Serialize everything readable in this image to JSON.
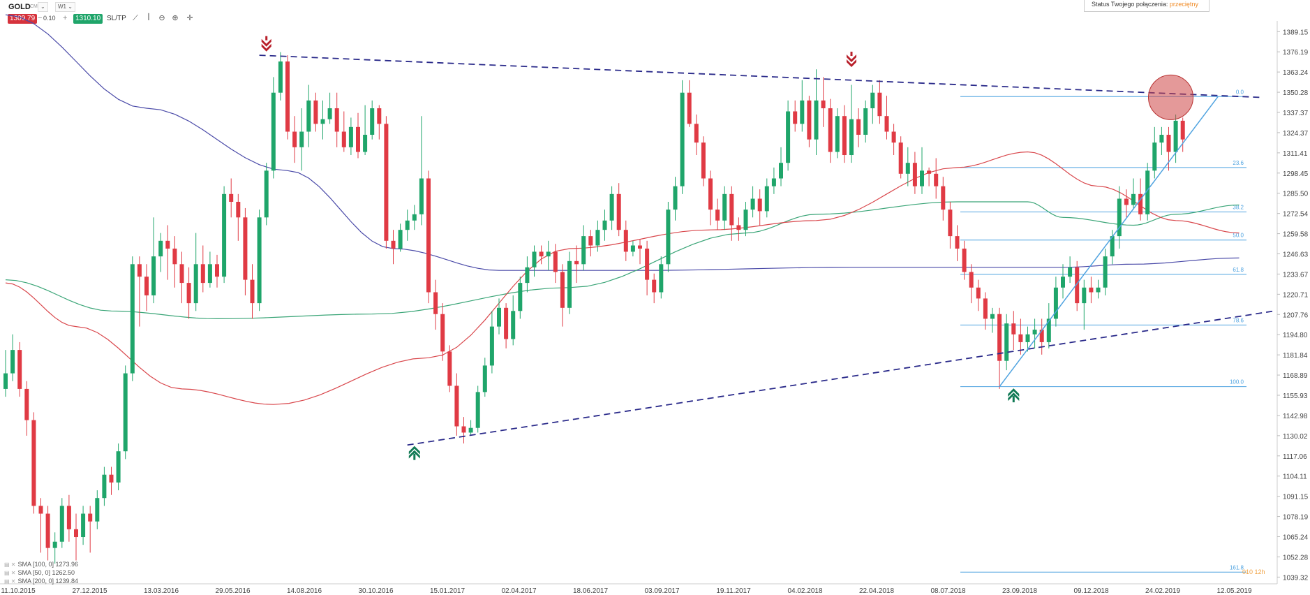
{
  "toolbar": {
    "symbol": "GOLD",
    "market": "CMD",
    "interval": "W1",
    "sell_price": "1309.79",
    "volume": "0.10",
    "buy_price": "1310.10",
    "sltp_label": "SL/TP"
  },
  "status": {
    "label": "Status Twojego połączenia:",
    "value": "przeciętny"
  },
  "legend": [
    {
      "label": "SMA [100, 0] 1273.96"
    },
    {
      "label": "SMA [50, 0] 1262.50"
    },
    {
      "label": "SMA [200, 0] 1239.84"
    }
  ],
  "corner_note": "010 12h",
  "colors": {
    "bull": "#1fa56a",
    "bear": "#e03a44",
    "sma100": "#d9474c",
    "sma50": "#3aa577",
    "sma200": "#4a4aa8",
    "fib": "#4fa3e0",
    "trend": "#2a2a8a"
  },
  "chart_data": {
    "type": "candlestick",
    "title": "",
    "xlabel": "",
    "ylabel": "",
    "ylim": [
      1035.0,
      1396.0
    ],
    "y_ticks": [
      "1389.15",
      "1376.19",
      "1363.24",
      "1350.28",
      "1337.37",
      "1324.37",
      "1311.41",
      "1298.45",
      "1285.50",
      "1272.54",
      "1259.58",
      "1246.63",
      "1233.67",
      "1220.71",
      "1207.76",
      "1194.80",
      "1181.84",
      "1168.89",
      "1155.93",
      "1142.98",
      "1130.02",
      "1117.06",
      "1104.11",
      "1091.15",
      "1078.19",
      "1065.24",
      "1052.28",
      "1039.32"
    ],
    "x_ticks": [
      "11.10.2015",
      "27.12.2015",
      "13.03.2016",
      "29.05.2016",
      "14.08.2016",
      "30.10.2016",
      "15.01.2017",
      "02.04.2017",
      "18.06.2017",
      "03.09.2017",
      "19.11.2017",
      "04.02.2018",
      "22.04.2018",
      "08.07.2018",
      "23.09.2018",
      "09.12.2018",
      "24.02.2019",
      "12.05.2019"
    ],
    "candles": [
      [
        1160,
        1170,
        1155,
        1185
      ],
      [
        1170,
        1185,
        1165,
        1195
      ],
      [
        1185,
        1160,
        1155,
        1190
      ],
      [
        1160,
        1140,
        1130,
        1165
      ],
      [
        1140,
        1085,
        1080,
        1145
      ],
      [
        1085,
        1080,
        1055,
        1090
      ],
      [
        1080,
        1058,
        1050,
        1085
      ],
      [
        1058,
        1062,
        1048,
        1068
      ],
      [
        1062,
        1085,
        1058,
        1090
      ],
      [
        1085,
        1070,
        1062,
        1092
      ],
      [
        1070,
        1065,
        1050,
        1080
      ],
      [
        1065,
        1080,
        1060,
        1085
      ],
      [
        1080,
        1075,
        1055,
        1085
      ],
      [
        1075,
        1090,
        1070,
        1095
      ],
      [
        1090,
        1105,
        1085,
        1110
      ],
      [
        1105,
        1100,
        1092,
        1110
      ],
      [
        1100,
        1120,
        1095,
        1125
      ],
      [
        1120,
        1170,
        1115,
        1175
      ],
      [
        1170,
        1240,
        1165,
        1245
      ],
      [
        1240,
        1232,
        1200,
        1245
      ],
      [
        1232,
        1220,
        1210,
        1240
      ],
      [
        1220,
        1245,
        1215,
        1270
      ],
      [
        1245,
        1255,
        1235,
        1260
      ],
      [
        1255,
        1250,
        1230,
        1265
      ],
      [
        1250,
        1240,
        1225,
        1258
      ],
      [
        1240,
        1228,
        1215,
        1248
      ],
      [
        1228,
        1215,
        1205,
        1238
      ],
      [
        1215,
        1240,
        1210,
        1260
      ],
      [
        1240,
        1228,
        1222,
        1252
      ],
      [
        1228,
        1240,
        1225,
        1248
      ],
      [
        1240,
        1232,
        1225,
        1246
      ],
      [
        1232,
        1285,
        1228,
        1290
      ],
      [
        1285,
        1280,
        1270,
        1295
      ],
      [
        1280,
        1270,
        1255,
        1285
      ],
      [
        1270,
        1230,
        1220,
        1276
      ],
      [
        1230,
        1215,
        1205,
        1240
      ],
      [
        1215,
        1270,
        1210,
        1275
      ],
      [
        1270,
        1300,
        1265,
        1305
      ],
      [
        1300,
        1350,
        1295,
        1360
      ],
      [
        1350,
        1370,
        1345,
        1376
      ],
      [
        1370,
        1325,
        1320,
        1374
      ],
      [
        1325,
        1315,
        1305,
        1335
      ],
      [
        1315,
        1325,
        1300,
        1340
      ],
      [
        1325,
        1345,
        1315,
        1355
      ],
      [
        1345,
        1330,
        1325,
        1350
      ],
      [
        1330,
        1333,
        1320,
        1345
      ],
      [
        1333,
        1340,
        1330,
        1350
      ],
      [
        1340,
        1325,
        1315,
        1350
      ],
      [
        1325,
        1315,
        1312,
        1338
      ],
      [
        1315,
        1328,
        1310,
        1334
      ],
      [
        1328,
        1312,
        1308,
        1337
      ],
      [
        1312,
        1323,
        1310,
        1342
      ],
      [
        1323,
        1340,
        1320,
        1345
      ],
      [
        1340,
        1330,
        1320,
        1342
      ],
      [
        1330,
        1255,
        1250,
        1335
      ],
      [
        1255,
        1250,
        1240,
        1262
      ],
      [
        1250,
        1262,
        1248,
        1266
      ],
      [
        1262,
        1268,
        1255,
        1275
      ],
      [
        1268,
        1272,
        1262,
        1278
      ],
      [
        1272,
        1295,
        1265,
        1335
      ],
      [
        1295,
        1222,
        1215,
        1300
      ],
      [
        1222,
        1208,
        1198,
        1230
      ],
      [
        1208,
        1184,
        1178,
        1215
      ],
      [
        1184,
        1162,
        1158,
        1188
      ],
      [
        1162,
        1136,
        1130,
        1170
      ],
      [
        1136,
        1132,
        1125,
        1142
      ],
      [
        1132,
        1135,
        1130,
        1140
      ],
      [
        1135,
        1158,
        1132,
        1162
      ],
      [
        1158,
        1175,
        1155,
        1180
      ],
      [
        1175,
        1200,
        1170,
        1210
      ],
      [
        1200,
        1212,
        1195,
        1218
      ],
      [
        1212,
        1192,
        1186,
        1215
      ],
      [
        1192,
        1210,
        1188,
        1220
      ],
      [
        1210,
        1228,
        1205,
        1232
      ],
      [
        1228,
        1238,
        1222,
        1245
      ],
      [
        1238,
        1248,
        1232,
        1252
      ],
      [
        1248,
        1245,
        1240,
        1252
      ],
      [
        1245,
        1248,
        1236,
        1255
      ],
      [
        1248,
        1235,
        1228,
        1253
      ],
      [
        1235,
        1212,
        1200,
        1240
      ],
      [
        1212,
        1242,
        1208,
        1248
      ],
      [
        1242,
        1240,
        1228,
        1252
      ],
      [
        1240,
        1258,
        1236,
        1265
      ],
      [
        1258,
        1252,
        1245,
        1262
      ],
      [
        1252,
        1262,
        1248,
        1268
      ],
      [
        1262,
        1268,
        1255,
        1275
      ],
      [
        1268,
        1285,
        1262,
        1290
      ],
      [
        1285,
        1262,
        1258,
        1292
      ],
      [
        1262,
        1248,
        1242,
        1268
      ],
      [
        1248,
        1252,
        1245,
        1255
      ],
      [
        1252,
        1250,
        1240,
        1256
      ],
      [
        1250,
        1230,
        1220,
        1255
      ],
      [
        1230,
        1222,
        1215,
        1234
      ],
      [
        1222,
        1240,
        1218,
        1245
      ],
      [
        1240,
        1275,
        1235,
        1280
      ],
      [
        1275,
        1290,
        1268,
        1296
      ],
      [
        1290,
        1350,
        1285,
        1358
      ],
      [
        1350,
        1330,
        1328,
        1358
      ],
      [
        1330,
        1318,
        1310,
        1336
      ],
      [
        1318,
        1295,
        1290,
        1322
      ],
      [
        1295,
        1275,
        1265,
        1300
      ],
      [
        1275,
        1268,
        1262,
        1282
      ],
      [
        1268,
        1285,
        1262,
        1290
      ],
      [
        1285,
        1265,
        1255,
        1290
      ],
      [
        1265,
        1262,
        1255,
        1270
      ],
      [
        1262,
        1275,
        1258,
        1280
      ],
      [
        1275,
        1282,
        1270,
        1290
      ],
      [
        1282,
        1274,
        1265,
        1288
      ],
      [
        1274,
        1290,
        1270,
        1295
      ],
      [
        1290,
        1295,
        1285,
        1302
      ],
      [
        1295,
        1305,
        1290,
        1315
      ],
      [
        1305,
        1338,
        1300,
        1345
      ],
      [
        1338,
        1330,
        1325,
        1345
      ],
      [
        1330,
        1345,
        1325,
        1358
      ],
      [
        1345,
        1320,
        1315,
        1348
      ],
      [
        1320,
        1345,
        1310,
        1365
      ],
      [
        1345,
        1340,
        1328,
        1360
      ],
      [
        1340,
        1312,
        1305,
        1346
      ],
      [
        1312,
        1335,
        1308,
        1340
      ],
      [
        1335,
        1310,
        1305,
        1342
      ],
      [
        1310,
        1333,
        1305,
        1355
      ],
      [
        1333,
        1323,
        1315,
        1340
      ],
      [
        1323,
        1340,
        1318,
        1345
      ],
      [
        1340,
        1350,
        1330,
        1355
      ],
      [
        1350,
        1335,
        1330,
        1358
      ],
      [
        1335,
        1325,
        1320,
        1348
      ],
      [
        1325,
        1318,
        1310,
        1330
      ],
      [
        1318,
        1298,
        1295,
        1322
      ],
      [
        1298,
        1305,
        1290,
        1315
      ],
      [
        1305,
        1290,
        1285,
        1312
      ],
      [
        1290,
        1300,
        1285,
        1315
      ],
      [
        1300,
        1298,
        1290,
        1302
      ],
      [
        1298,
        1290,
        1282,
        1308
      ],
      [
        1290,
        1275,
        1268,
        1296
      ],
      [
        1275,
        1258,
        1250,
        1280
      ],
      [
        1258,
        1250,
        1242,
        1265
      ],
      [
        1250,
        1235,
        1230,
        1255
      ],
      [
        1235,
        1225,
        1215,
        1240
      ],
      [
        1225,
        1218,
        1210,
        1230
      ],
      [
        1218,
        1205,
        1198,
        1222
      ],
      [
        1205,
        1208,
        1196,
        1212
      ],
      [
        1208,
        1178,
        1160,
        1212
      ],
      [
        1178,
        1202,
        1172,
        1208
      ],
      [
        1202,
        1195,
        1185,
        1210
      ],
      [
        1195,
        1190,
        1182,
        1205
      ],
      [
        1190,
        1195,
        1184,
        1200
      ],
      [
        1195,
        1198,
        1186,
        1205
      ],
      [
        1198,
        1190,
        1182,
        1205
      ],
      [
        1190,
        1205,
        1186,
        1215
      ],
      [
        1205,
        1225,
        1200,
        1232
      ],
      [
        1225,
        1232,
        1218,
        1240
      ],
      [
        1232,
        1238,
        1228,
        1245
      ],
      [
        1238,
        1215,
        1210,
        1242
      ],
      [
        1215,
        1225,
        1198,
        1230
      ],
      [
        1225,
        1222,
        1215,
        1232
      ],
      [
        1222,
        1225,
        1218,
        1230
      ],
      [
        1225,
        1245,
        1220,
        1250
      ],
      [
        1245,
        1258,
        1240,
        1262
      ],
      [
        1258,
        1282,
        1250,
        1290
      ],
      [
        1282,
        1278,
        1270,
        1288
      ],
      [
        1278,
        1285,
        1275,
        1295
      ],
      [
        1285,
        1272,
        1268,
        1295
      ],
      [
        1272,
        1300,
        1268,
        1305
      ],
      [
        1300,
        1318,
        1295,
        1328
      ],
      [
        1318,
        1323,
        1310,
        1328
      ],
      [
        1323,
        1312,
        1300,
        1328
      ],
      [
        1312,
        1332,
        1305,
        1336
      ],
      [
        1332,
        1320,
        1312,
        1334
      ]
    ],
    "sma100": [
      [
        0,
        1228
      ],
      [
        10,
        1200
      ],
      [
        25,
        1160
      ],
      [
        38,
        1150
      ],
      [
        60,
        1180
      ],
      [
        80,
        1250
      ],
      [
        100,
        1262
      ],
      [
        115,
        1268
      ],
      [
        135,
        1302
      ],
      [
        145,
        1312
      ],
      [
        155,
        1290
      ],
      [
        166,
        1268
      ],
      [
        175,
        1260
      ]
    ],
    "sma50": [
      [
        0,
        1230
      ],
      [
        15,
        1210
      ],
      [
        30,
        1205
      ],
      [
        52,
        1208
      ],
      [
        80,
        1225
      ],
      [
        105,
        1260
      ],
      [
        115,
        1272
      ],
      [
        135,
        1280
      ],
      [
        145,
        1280
      ],
      [
        150,
        1270
      ],
      [
        160,
        1265
      ],
      [
        166,
        1272
      ],
      [
        175,
        1278
      ]
    ],
    "sma200": [
      [
        0,
        1400
      ],
      [
        20,
        1340
      ],
      [
        40,
        1300
      ],
      [
        55,
        1250
      ],
      [
        70,
        1236
      ],
      [
        90,
        1236
      ],
      [
        120,
        1238
      ],
      [
        140,
        1238
      ],
      [
        150,
        1238
      ],
      [
        160,
        1240
      ],
      [
        175,
        1244
      ]
    ],
    "fibonacci": [
      {
        "level": "0.0",
        "price": 1347.5
      },
      {
        "level": "23.6",
        "price": 1302.0
      },
      {
        "level": "38.2",
        "price": 1273.5
      },
      {
        "level": "50.0",
        "price": 1255.5
      },
      {
        "level": "61.8",
        "price": 1233.5
      },
      {
        "level": "78.6",
        "price": 1201.0
      },
      {
        "level": "100.0",
        "price": 1161.5
      },
      {
        "level": "161.8",
        "price": 1042.5
      }
    ],
    "trendlines": [
      {
        "name": "resistance",
        "from": [
          36,
          1374
        ],
        "to": [
          178,
          1347
        ]
      },
      {
        "name": "support",
        "from": [
          57,
          1124
        ],
        "to": [
          180,
          1210
        ]
      },
      {
        "name": "rally",
        "from": [
          141,
          1161.5
        ],
        "to": [
          172,
          1347.5
        ]
      }
    ],
    "markers": [
      {
        "type": "sell-arrow",
        "at": [
          37,
          1380
        ]
      },
      {
        "type": "sell-arrow",
        "at": [
          120,
          1370
        ]
      },
      {
        "type": "buy-arrow",
        "at": [
          58,
          1118
        ]
      },
      {
        "type": "buy-arrow",
        "at": [
          143,
          1155
        ]
      }
    ],
    "highlight_circle": {
      "at": [
        165,
        1347
      ]
    }
  }
}
